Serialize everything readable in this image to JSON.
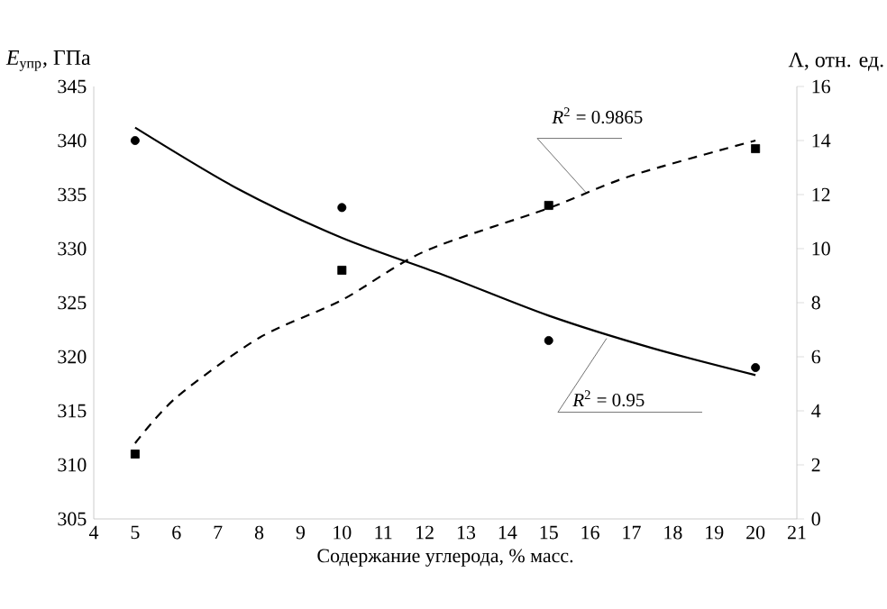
{
  "chart_data": {
    "type": "scatter",
    "xlabel": "Содержание углерода, % масс.",
    "ylabel": "*E*$_{упр}$, ГПа",
    "y2label": "Λ, отн. ед.",
    "xlim": [
      4,
      21
    ],
    "xticks": [
      4,
      5,
      6,
      7,
      8,
      9,
      10,
      11,
      12,
      13,
      14,
      15,
      16,
      17,
      18,
      19,
      20,
      21
    ],
    "ylim": [
      305,
      345
    ],
    "yticks": [
      305,
      310,
      315,
      320,
      325,
      330,
      335,
      340,
      345
    ],
    "y2lim": [
      0,
      16
    ],
    "y2ticks": [
      0,
      2,
      4,
      6,
      8,
      10,
      12,
      14,
      16
    ],
    "series": [
      {
        "color": "#000000",
        "marker": "circle",
        "x": [
          5,
          10,
          15,
          20
        ],
        "values": [
          340,
          333.8,
          321.5,
          319
        ]
      },
      {
        "color": "#000000",
        "marker": "square",
        "axis": "y2",
        "x": [
          5,
          10,
          15,
          20
        ],
        "values": [
          2.4,
          9.2,
          11.6,
          13.7
        ]
      },
      {
        "type": "line",
        "color": "#000000",
        "line_style": "solid",
        "x": [
          5,
          7.5,
          10,
          12.5,
          15,
          17.5,
          20
        ],
        "values": [
          341.2,
          335.5,
          331,
          327.5,
          323.8,
          320.8,
          318.3
        ]
      },
      {
        "type": "line",
        "color": "#000000",
        "line_style": "dashed",
        "axis": "y2",
        "x": [
          5,
          6,
          8,
          10,
          12,
          15,
          17,
          20
        ],
        "values": [
          2.8,
          4.5,
          6.7,
          8.1,
          9.9,
          11.5,
          12.7,
          14.0
        ]
      }
    ],
    "annotations": [
      {
        "text": "*R*$^{2}$ = 0.9865",
        "x": 15.9,
        "y": 335.2
      },
      {
        "text": "*R*$^{2}$ = 0.95",
        "x": 16.4,
        "y": 321.7
      }
    ]
  }
}
